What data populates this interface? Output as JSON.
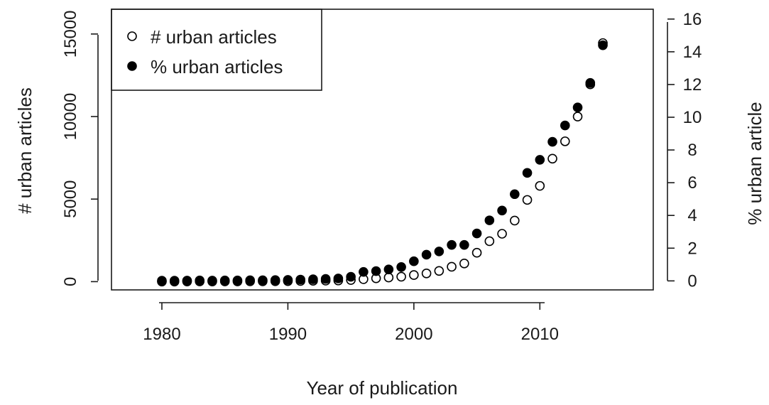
{
  "chart_data": {
    "type": "scatter",
    "title": "",
    "xlabel": "Year of publication",
    "ylabel": "# urban articles",
    "y2label": "% urban article",
    "xlim": [
      1976,
      2019
    ],
    "ylim": [
      -500,
      16500
    ],
    "y2lim": [
      -0.55,
      16.6
    ],
    "x_ticks": [
      1980,
      1990,
      2000,
      2010
    ],
    "y_ticks": [
      0,
      5000,
      10000,
      15000
    ],
    "y2_ticks": [
      0,
      2,
      4,
      6,
      8,
      10,
      12,
      14,
      16
    ],
    "legend_position": "top-left",
    "grid": false,
    "x": [
      1980,
      1981,
      1982,
      1983,
      1984,
      1985,
      1986,
      1987,
      1988,
      1989,
      1990,
      1991,
      1992,
      1993,
      1994,
      1995,
      1996,
      1997,
      1998,
      1999,
      2000,
      2001,
      2002,
      2003,
      2004,
      2005,
      2006,
      2007,
      2008,
      2009,
      2010,
      2011,
      2012,
      2013,
      2014,
      2015
    ],
    "series": [
      {
        "name": "# urban articles",
        "axis": "left",
        "marker": "open-circle",
        "values": [
          5,
          5,
          10,
          15,
          10,
          15,
          15,
          20,
          20,
          25,
          30,
          40,
          50,
          60,
          70,
          100,
          150,
          200,
          250,
          300,
          400,
          500,
          650,
          900,
          1100,
          1750,
          2450,
          2900,
          3700,
          4950,
          5800,
          7450,
          8500,
          10000,
          11950,
          14450
        ]
      },
      {
        "name": "% urban articles",
        "axis": "right",
        "marker": "filled-circle",
        "values": [
          0.01,
          0.01,
          0.02,
          0.03,
          0.02,
          0.03,
          0.03,
          0.04,
          0.04,
          0.05,
          0.06,
          0.08,
          0.1,
          0.12,
          0.15,
          0.25,
          0.55,
          0.6,
          0.7,
          0.85,
          1.2,
          1.6,
          1.8,
          2.2,
          2.2,
          2.9,
          3.7,
          4.3,
          5.3,
          6.6,
          7.4,
          8.5,
          9.5,
          10.6,
          12.1,
          14.4
        ]
      }
    ]
  }
}
